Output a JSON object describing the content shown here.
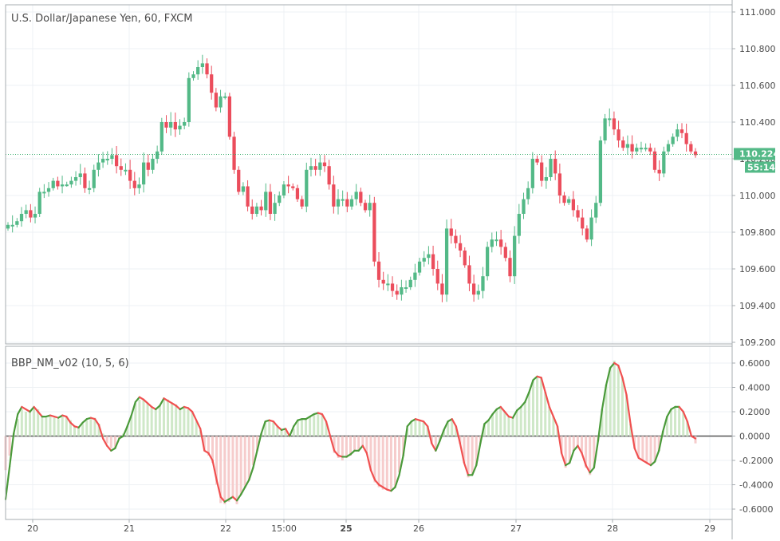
{
  "colors": {
    "up": "#53b987",
    "down": "#eb4d5c",
    "osc_up": "#4a9a3a",
    "osc_down": "#f05050",
    "hist_up": "#cfe8c8",
    "hist_down": "#f6cccc",
    "grid": "#eef1f4",
    "axis": "#a7acb1",
    "price_line": "#3cae6f",
    "tag_bg": "#53b987"
  },
  "chart_data": [
    {
      "type": "candlestick",
      "title": "U.S. Dollar/Japanese Yen, 60, FXCM",
      "ylim": [
        109.18,
        111.02
      ],
      "yticks": [
        "111.000",
        "110.800",
        "110.600",
        "110.400",
        "110.200",
        "110.000",
        "109.800",
        "109.600",
        "109.400",
        "109.200"
      ],
      "ytick_values": [
        111.0,
        110.8,
        110.6,
        110.4,
        110.2,
        110.0,
        109.8,
        109.6,
        109.4,
        109.2
      ],
      "last_price": "110.224",
      "last_price_value": 110.224,
      "countdown": "55:14",
      "closes": [
        109.84,
        109.84,
        109.86,
        109.9,
        109.92,
        109.88,
        109.9,
        110.02,
        110.02,
        110.04,
        110.08,
        110.05,
        110.06,
        110.06,
        110.08,
        110.1,
        110.12,
        110.04,
        110.04,
        110.14,
        110.18,
        110.2,
        110.2,
        110.22,
        110.16,
        110.14,
        110.14,
        110.08,
        110.04,
        110.06,
        110.18,
        110.14,
        110.2,
        110.24,
        110.4,
        110.37,
        110.4,
        110.36,
        110.38,
        110.4,
        110.64,
        110.66,
        110.7,
        110.72,
        110.66,
        110.56,
        110.48,
        110.54,
        110.54,
        110.32,
        110.14,
        110.02,
        110.05,
        109.94,
        109.9,
        109.94,
        109.92,
        110.02,
        109.9,
        109.96,
        110.0,
        110.06,
        110.05,
        110.04,
        109.98,
        109.94,
        110.14,
        110.16,
        110.14,
        110.18,
        110.16,
        110.06,
        109.94,
        109.98,
        109.98,
        109.94,
        109.98,
        110.02,
        109.96,
        109.92,
        109.96,
        109.64,
        109.54,
        109.52,
        109.52,
        109.48,
        109.46,
        109.5,
        109.5,
        109.54,
        109.58,
        109.64,
        109.66,
        109.68,
        109.6,
        109.52,
        109.46,
        109.82,
        109.78,
        109.74,
        109.7,
        109.62,
        109.52,
        109.46,
        109.48,
        109.56,
        109.72,
        109.76,
        109.76,
        109.72,
        109.66,
        109.56,
        109.78,
        109.9,
        109.98,
        110.04,
        110.2,
        110.18,
        110.08,
        110.1,
        110.2,
        110.12,
        110.0,
        109.96,
        109.98,
        109.92,
        109.88,
        109.82,
        109.76,
        109.88,
        109.96,
        110.3,
        110.42,
        110.42,
        110.36,
        110.3,
        110.26,
        110.28,
        110.24,
        110.26,
        110.26,
        110.26,
        110.24,
        110.14,
        110.12,
        110.24,
        110.28,
        110.32,
        110.36,
        110.34,
        110.28,
        110.24,
        110.22
      ]
    },
    {
      "type": "line",
      "title": "BBP_NM_v02 (10, 5, 6)",
      "ylim": [
        -0.66,
        0.66
      ],
      "yticks": [
        "0.6000",
        "0.4000",
        "0.2000",
        "0.0000",
        "-0.2000",
        "-0.4000",
        "-0.6000"
      ],
      "ytick_values": [
        0.6,
        0.4,
        0.2,
        0.0,
        -0.2,
        -0.4,
        -0.6
      ],
      "xlabels": [
        "20",
        "21",
        "22",
        "15:00",
        "25",
        "26",
        "27",
        "28",
        "29"
      ],
      "values": [
        -0.52,
        -0.25,
        0.02,
        0.18,
        0.24,
        0.22,
        0.2,
        0.24,
        0.2,
        0.16,
        0.16,
        0.17,
        0.16,
        0.15,
        0.17,
        0.16,
        0.11,
        0.08,
        0.07,
        0.11,
        0.14,
        0.15,
        0.14,
        0.09,
        -0.02,
        -0.08,
        -0.12,
        -0.1,
        -0.02,
        0.0,
        0.08,
        0.17,
        0.28,
        0.32,
        0.3,
        0.27,
        0.24,
        0.22,
        0.25,
        0.31,
        0.29,
        0.27,
        0.25,
        0.22,
        0.24,
        0.23,
        0.2,
        0.13,
        0.06,
        -0.12,
        -0.14,
        -0.2,
        -0.36,
        -0.5,
        -0.54,
        -0.52,
        -0.5,
        -0.53,
        -0.48,
        -0.42,
        -0.36,
        -0.26,
        -0.12,
        0.02,
        0.12,
        0.13,
        0.12,
        0.08,
        0.05,
        0.06,
        0.0,
        0.08,
        0.13,
        0.14,
        0.14,
        0.16,
        0.18,
        0.19,
        0.18,
        0.12,
        0.0,
        -0.12,
        -0.16,
        -0.17,
        -0.17,
        -0.15,
        -0.12,
        -0.12,
        -0.08,
        -0.14,
        -0.28,
        -0.36,
        -0.4,
        -0.42,
        -0.44,
        -0.45,
        -0.42,
        -0.32,
        -0.16,
        0.08,
        0.12,
        0.14,
        0.13,
        0.12,
        0.08,
        -0.06,
        -0.12,
        -0.04,
        0.05,
        0.12,
        0.14,
        0.08,
        -0.06,
        -0.22,
        -0.32,
        -0.32,
        -0.24,
        -0.06,
        0.1,
        0.13,
        0.18,
        0.22,
        0.24,
        0.2,
        0.16,
        0.15,
        0.21,
        0.24,
        0.28,
        0.36,
        0.46,
        0.49,
        0.48,
        0.36,
        0.24,
        0.16,
        0.08,
        -0.14,
        -0.24,
        -0.22,
        -0.12,
        -0.08,
        -0.14,
        -0.24,
        -0.3,
        -0.26,
        -0.04,
        0.22,
        0.42,
        0.56,
        0.6,
        0.58,
        0.48,
        0.34,
        0.1,
        -0.1,
        -0.18,
        -0.2,
        -0.22,
        -0.24,
        -0.21,
        -0.12,
        0.04,
        0.16,
        0.22,
        0.24,
        0.24,
        0.2,
        0.12,
        0.0,
        -0.02
      ],
      "histogram": [
        -0.28,
        -0.16,
        0.02,
        0.14,
        0.22,
        0.2,
        0.2,
        0.23,
        0.22,
        0.17,
        0.15,
        0.16,
        0.15,
        0.14,
        0.16,
        0.16,
        0.13,
        0.08,
        0.07,
        0.1,
        0.13,
        0.15,
        0.15,
        0.1,
        0.02,
        -0.06,
        -0.1,
        -0.1,
        -0.02,
        0.02,
        0.08,
        0.16,
        0.27,
        0.3,
        0.3,
        0.27,
        0.24,
        0.23,
        0.25,
        0.3,
        0.3,
        0.27,
        0.26,
        0.23,
        0.24,
        0.22,
        0.2,
        0.12,
        0.05,
        -0.12,
        -0.16,
        -0.22,
        -0.4,
        -0.55,
        -0.56,
        -0.54,
        -0.5,
        -0.56,
        -0.48,
        -0.42,
        -0.36,
        -0.24,
        -0.12,
        0.02,
        0.12,
        0.13,
        0.12,
        0.08,
        0.05,
        0.06,
        0.0,
        0.06,
        0.13,
        0.14,
        0.14,
        0.16,
        0.18,
        0.19,
        0.18,
        0.12,
        0.0,
        -0.14,
        -0.18,
        -0.2,
        -0.18,
        -0.16,
        -0.12,
        -0.12,
        -0.08,
        -0.14,
        -0.28,
        -0.38,
        -0.42,
        -0.44,
        -0.44,
        -0.44,
        -0.42,
        -0.3,
        -0.16,
        0.06,
        0.12,
        0.14,
        0.13,
        0.12,
        0.08,
        -0.06,
        -0.12,
        -0.04,
        0.05,
        0.12,
        0.14,
        0.08,
        -0.06,
        -0.22,
        -0.34,
        -0.32,
        -0.24,
        -0.06,
        0.1,
        0.13,
        0.18,
        0.22,
        0.24,
        0.2,
        0.16,
        0.15,
        0.21,
        0.24,
        0.28,
        0.36,
        0.46,
        0.49,
        0.48,
        0.36,
        0.24,
        0.16,
        0.08,
        -0.14,
        -0.26,
        -0.22,
        -0.12,
        -0.08,
        -0.14,
        -0.26,
        -0.32,
        -0.26,
        -0.04,
        0.22,
        0.42,
        0.56,
        0.62,
        0.58,
        0.48,
        0.34,
        0.1,
        -0.1,
        -0.18,
        -0.2,
        -0.22,
        -0.24,
        -0.21,
        -0.12,
        0.04,
        0.16,
        0.22,
        0.24,
        0.24,
        0.2,
        0.12,
        0.0,
        -0.06
      ]
    }
  ]
}
